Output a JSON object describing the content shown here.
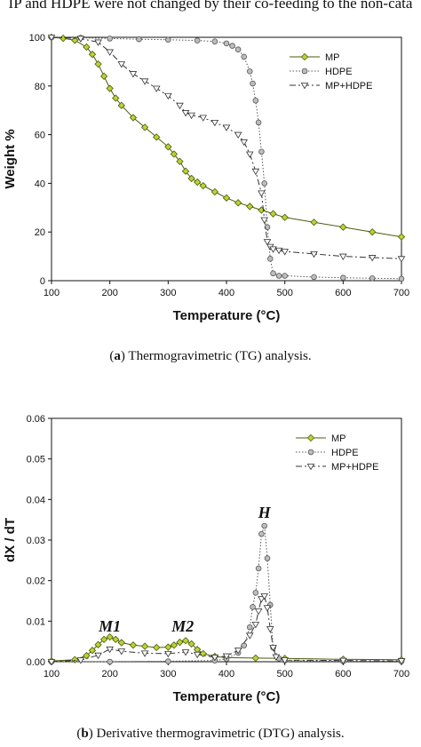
{
  "page": {
    "header_text": "IP and HDPE were not changed by their co-feeding to the non-cata",
    "caption_a_label": "a",
    "caption_a_text": " Thermogravimetric (TG) analysis.",
    "caption_b_label": "b",
    "caption_b_text": " Derivative thermogravimetric (DTG) analysis."
  },
  "colors": {
    "mp_fill": "#b7d630",
    "mp_line": "#4d5a10",
    "hdpe_fill": "#bdbdbd",
    "hdpe_line": "#555555",
    "mphdpe_line": "#333333"
  },
  "chart_data": [
    {
      "type": "line",
      "title": "",
      "xlabel": "Temperature (°C)",
      "ylabel": "Weight %",
      "xlim": [
        100,
        700
      ],
      "ylim": [
        0,
        100
      ],
      "xticks": [
        100,
        200,
        300,
        400,
        500,
        600,
        700
      ],
      "yticks": [
        0,
        20,
        40,
        60,
        80,
        100
      ],
      "legend_position": "top-right",
      "annotations": [],
      "series": [
        {
          "name": "MP",
          "marker": "diamond",
          "line": "solid",
          "x": [
            100,
            120,
            140,
            160,
            170,
            180,
            190,
            200,
            210,
            220,
            240,
            260,
            280,
            300,
            310,
            320,
            330,
            340,
            350,
            360,
            380,
            400,
            420,
            440,
            460,
            480,
            500,
            550,
            600,
            650,
            700
          ],
          "y": [
            100,
            99.6,
            98.8,
            96,
            93,
            89,
            84,
            79,
            75,
            72,
            67,
            63,
            59,
            55,
            52,
            49,
            45,
            42,
            40.5,
            39,
            36.5,
            34,
            32,
            30.5,
            29,
            27.5,
            26,
            24,
            22,
            20,
            18
          ]
        },
        {
          "name": "HDPE",
          "marker": "circle",
          "line": "dotted",
          "x": [
            100,
            150,
            200,
            250,
            300,
            350,
            380,
            400,
            410,
            420,
            430,
            440,
            445,
            450,
            455,
            460,
            465,
            470,
            475,
            480,
            490,
            500,
            550,
            600,
            650,
            700
          ],
          "y": [
            100,
            99.8,
            99.5,
            99.2,
            99,
            98.7,
            98.3,
            97.5,
            96.5,
            95,
            92,
            86,
            81,
            74,
            65,
            53,
            40,
            22,
            9,
            3,
            2,
            2,
            1.5,
            1.2,
            1,
            0.8
          ]
        },
        {
          "name": "MP+HDPE",
          "marker": "triangle-down",
          "line": "dashdot",
          "x": [
            100,
            150,
            180,
            200,
            220,
            240,
            260,
            280,
            300,
            320,
            330,
            340,
            360,
            380,
            400,
            420,
            430,
            440,
            450,
            460,
            465,
            470,
            475,
            480,
            490,
            500,
            550,
            600,
            650,
            700
          ],
          "y": [
            100,
            99.5,
            98,
            94,
            89,
            85,
            82,
            79,
            76,
            72,
            69,
            68,
            67,
            65,
            63,
            60,
            57,
            52,
            45,
            36,
            25,
            16,
            14,
            13,
            12.5,
            12,
            11,
            10,
            9.5,
            9
          ]
        }
      ]
    },
    {
      "type": "line",
      "title": "",
      "xlabel": "Temperature (°C)",
      "ylabel": "dX / dT",
      "xlim": [
        100,
        700
      ],
      "ylim": [
        0,
        0.06
      ],
      "xticks": [
        100,
        200,
        300,
        400,
        500,
        600,
        700
      ],
      "yticks": [
        0.0,
        0.01,
        0.02,
        0.03,
        0.04,
        0.05,
        0.06
      ],
      "ytick_labels": [
        "0.00",
        "0.01",
        "0.02",
        "0.03",
        "0.04",
        "0.05",
        "0.06"
      ],
      "legend_position": "top-right",
      "annotations": [
        {
          "text": "M1",
          "x": 200,
          "y": 0.0075
        },
        {
          "text": "M2",
          "x": 325,
          "y": 0.0075
        },
        {
          "text": "H",
          "x": 465,
          "y": 0.0355
        }
      ],
      "series": [
        {
          "name": "MP",
          "marker": "diamond",
          "line": "solid",
          "x": [
            100,
            140,
            160,
            170,
            180,
            190,
            200,
            210,
            220,
            240,
            260,
            280,
            300,
            310,
            320,
            330,
            340,
            350,
            360,
            380,
            400,
            450,
            500,
            600,
            700
          ],
          "y": [
            0.0002,
            0.0005,
            0.0015,
            0.0028,
            0.0042,
            0.0055,
            0.0061,
            0.0055,
            0.0047,
            0.0041,
            0.0038,
            0.0035,
            0.0036,
            0.0041,
            0.0048,
            0.0052,
            0.0044,
            0.003,
            0.002,
            0.0013,
            0.001,
            0.0009,
            0.0008,
            0.0006,
            0.0005
          ]
        },
        {
          "name": "HDPE",
          "marker": "circle",
          "line": "dotted",
          "x": [
            100,
            200,
            300,
            380,
            400,
            420,
            430,
            440,
            445,
            450,
            455,
            460,
            465,
            470,
            475,
            480,
            490,
            500,
            600,
            700
          ],
          "y": [
            0.0,
            0.0,
            0.0001,
            0.0003,
            0.0007,
            0.0022,
            0.004,
            0.0085,
            0.0135,
            0.017,
            0.023,
            0.0315,
            0.0335,
            0.0255,
            0.014,
            0.0035,
            0.0008,
            0.0003,
            0.0001,
            0.0001
          ]
        },
        {
          "name": "MP+HDPE",
          "marker": "triangle-down",
          "line": "dashdot",
          "x": [
            100,
            150,
            180,
            200,
            220,
            260,
            300,
            330,
            350,
            380,
            400,
            420,
            440,
            450,
            455,
            460,
            465,
            470,
            475,
            480,
            485,
            500,
            600,
            700
          ],
          "y": [
            0.0,
            0.0004,
            0.0016,
            0.0031,
            0.0026,
            0.0021,
            0.002,
            0.0024,
            0.0018,
            0.0011,
            0.0014,
            0.0028,
            0.0065,
            0.0092,
            0.0125,
            0.0155,
            0.0162,
            0.0133,
            0.0081,
            0.0035,
            0.0012,
            0.0004,
            0.0003,
            0.0002
          ]
        }
      ]
    }
  ]
}
